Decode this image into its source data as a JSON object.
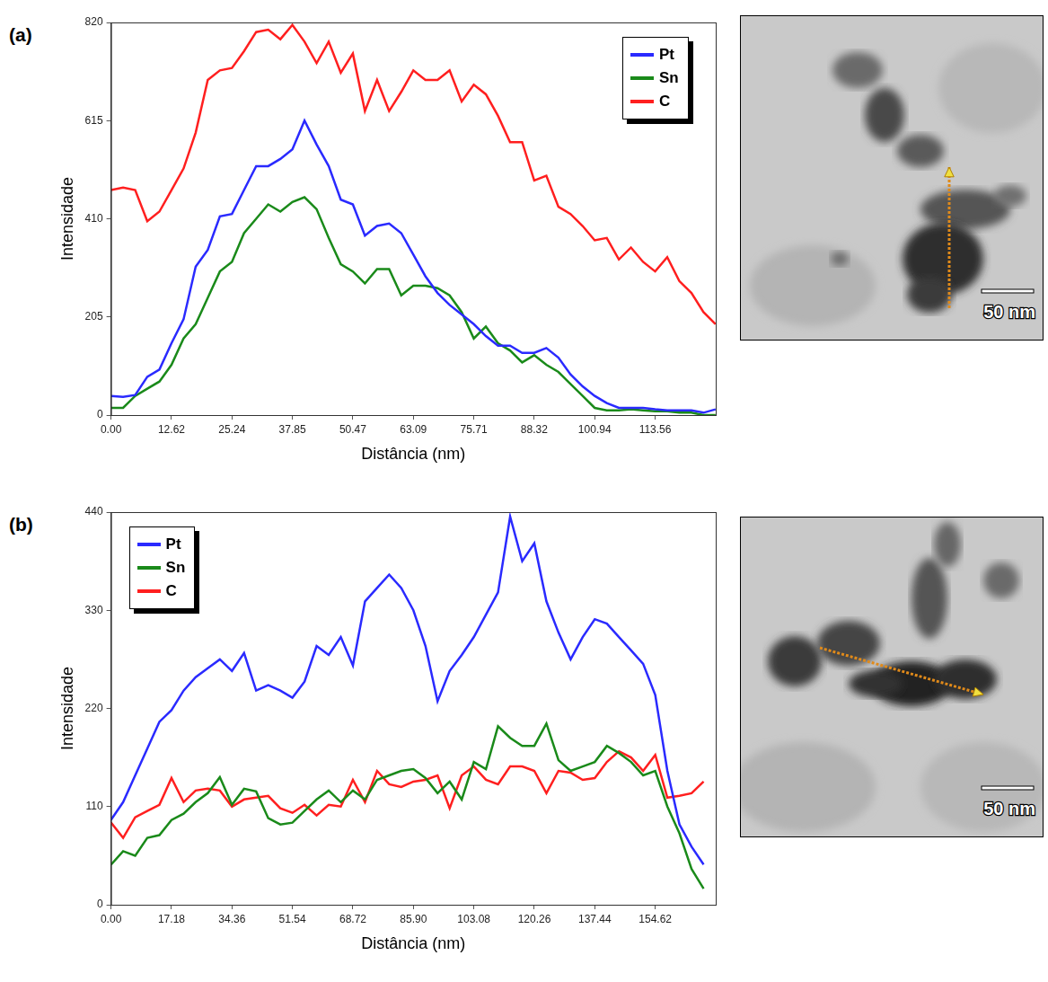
{
  "chart_data": [
    {
      "panel": "(a)",
      "type": "line",
      "x_label": "Distância (nm)",
      "y_label": "Intensidade",
      "x": [
        0,
        2.52,
        5.05,
        7.57,
        10.1,
        12.62,
        15.14,
        17.67,
        20.19,
        22.72,
        25.24,
        27.76,
        30.29,
        32.81,
        35.34,
        37.85,
        40.38,
        42.91,
        45.43,
        47.95,
        50.47,
        52.99,
        55.52,
        58.04,
        60.57,
        63.09,
        65.61,
        68.14,
        70.66,
        73.18,
        75.71,
        78.23,
        80.76,
        83.28,
        85.8,
        88.32,
        90.85,
        93.37,
        95.89,
        98.42,
        100.94,
        103.46,
        105.99,
        108.51,
        111.03,
        113.56,
        116.08,
        118.6,
        121.13,
        123.65,
        126.17
      ],
      "series": [
        {
          "name": "Pt",
          "color": "#2a2aff",
          "values": [
            40,
            38,
            42,
            80,
            95,
            150,
            200,
            310,
            345,
            415,
            420,
            470,
            520,
            520,
            535,
            555,
            615,
            565,
            520,
            450,
            440,
            375,
            395,
            400,
            380,
            335,
            290,
            255,
            230,
            210,
            190,
            165,
            145,
            145,
            130,
            130,
            140,
            120,
            85,
            60,
            40,
            25,
            15,
            15,
            15,
            12,
            10,
            10,
            10,
            5,
            12
          ]
        },
        {
          "name": "Sn",
          "color": "#1a8a1a",
          "values": [
            15,
            15,
            40,
            55,
            70,
            105,
            160,
            190,
            245,
            300,
            320,
            380,
            410,
            440,
            425,
            445,
            455,
            430,
            370,
            315,
            300,
            275,
            305,
            305,
            250,
            270,
            270,
            265,
            250,
            215,
            160,
            185,
            150,
            135,
            110,
            125,
            105,
            90,
            65,
            40,
            15,
            10,
            10,
            12,
            10,
            8,
            8,
            5,
            5,
            0,
            0
          ]
        },
        {
          "name": "C",
          "color": "#ff1f1f",
          "values": [
            470,
            475,
            470,
            405,
            425,
            470,
            515,
            590,
            700,
            720,
            725,
            760,
            800,
            805,
            785,
            815,
            780,
            735,
            780,
            715,
            755,
            635,
            700,
            635,
            675,
            720,
            700,
            700,
            720,
            655,
            690,
            670,
            625,
            570,
            570,
            490,
            500,
            435,
            420,
            395,
            365,
            370,
            325,
            350,
            320,
            300,
            330,
            280,
            255,
            215,
            190
          ]
        }
      ],
      "xlim": [
        0,
        126.2
      ],
      "xticks": [
        {
          "value": 0,
          "label": "0.00"
        },
        12.62,
        25.24,
        37.85,
        50.47,
        63.09,
        75.71,
        88.32,
        100.94,
        113.56
      ],
      "ylim": [
        0,
        820
      ],
      "yticks": [
        0,
        205,
        410,
        615,
        820
      ],
      "grid": false,
      "legend": "top right",
      "image": {
        "scale_bar": "50 nm"
      }
    },
    {
      "panel": "(b)",
      "type": "line",
      "x_label": "Distância (nm)",
      "y_label": "Intensidade",
      "x": [
        0,
        3.44,
        6.87,
        10.31,
        13.74,
        17.18,
        20.62,
        24.05,
        27.49,
        30.92,
        34.36,
        37.8,
        41.23,
        44.67,
        48.1,
        51.54,
        54.98,
        58.41,
        61.85,
        65.28,
        68.72,
        72.16,
        75.59,
        79.03,
        82.46,
        85.9,
        89.34,
        92.77,
        96.21,
        99.64,
        103.08,
        106.52,
        109.95,
        113.39,
        116.82,
        120.26,
        123.7,
        127.13,
        130.57,
        134.0,
        137.44,
        140.88,
        144.31,
        147.75,
        151.18,
        154.62,
        158.06,
        161.49,
        164.93,
        168.36
      ],
      "series": [
        {
          "name": "Pt",
          "color": "#2a2aff",
          "values": [
            95,
            115,
            145,
            175,
            205,
            218,
            240,
            255,
            265,
            275,
            262,
            282,
            240,
            246,
            240,
            232,
            250,
            290,
            280,
            300,
            268,
            340,
            355,
            370,
            355,
            330,
            290,
            228,
            262,
            280,
            300,
            325,
            350,
            435,
            385,
            405,
            340,
            305,
            275,
            300,
            320,
            315,
            300,
            285,
            270,
            235,
            150,
            90,
            65,
            45
          ]
        },
        {
          "name": "Sn",
          "color": "#1a8a1a",
          "values": [
            45,
            60,
            55,
            75,
            78,
            95,
            102,
            115,
            125,
            143,
            112,
            130,
            127,
            97,
            90,
            92,
            105,
            118,
            128,
            115,
            128,
            118,
            140,
            145,
            150,
            152,
            142,
            125,
            138,
            118,
            160,
            152,
            200,
            187,
            178,
            178,
            203,
            162,
            150,
            155,
            160,
            178,
            170,
            160,
            145,
            150,
            110,
            80,
            40,
            18
          ]
        },
        {
          "name": "C",
          "color": "#ff1f1f",
          "values": [
            92,
            75,
            98,
            105,
            112,
            142,
            115,
            128,
            130,
            128,
            110,
            118,
            120,
            122,
            108,
            103,
            112,
            100,
            112,
            110,
            140,
            115,
            150,
            135,
            132,
            138,
            140,
            145,
            108,
            145,
            155,
            140,
            135,
            155,
            155,
            150,
            125,
            150,
            148,
            140,
            142,
            160,
            172,
            165,
            150,
            168,
            120,
            122,
            125,
            138
          ]
        }
      ],
      "xlim": [
        0,
        171.8
      ],
      "xticks": [
        {
          "value": 0,
          "label": "0.00"
        },
        17.18,
        34.36,
        51.54,
        68.72,
        {
          "value": 85.9,
          "label": "85.90"
        },
        103.08,
        120.26,
        137.44,
        154.62
      ],
      "ylim": [
        0,
        440
      ],
      "yticks": [
        0,
        110,
        220,
        330,
        440
      ],
      "grid": false,
      "legend": "top left",
      "image": {
        "scale_bar": "50 nm"
      }
    }
  ]
}
